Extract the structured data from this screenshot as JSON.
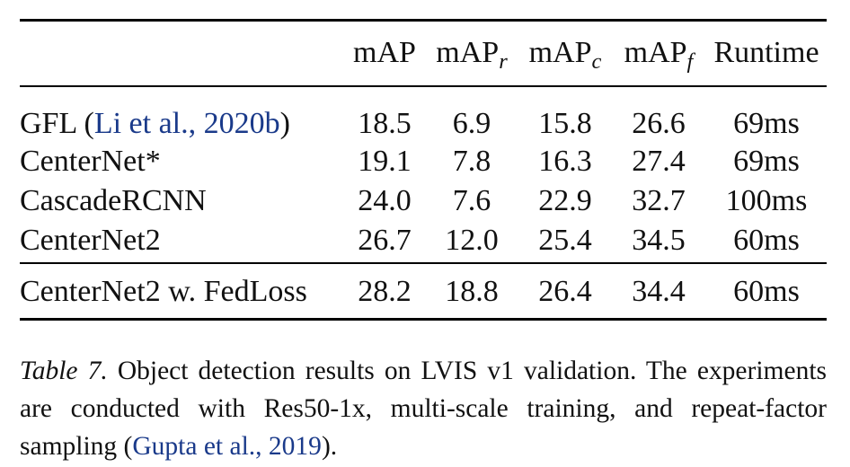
{
  "table": {
    "columns": [
      {
        "name": "",
        "sub": ""
      },
      {
        "name": "mAP",
        "sub": ""
      },
      {
        "name": "mAP",
        "sub": "r"
      },
      {
        "name": "mAP",
        "sub": "c"
      },
      {
        "name": "mAP",
        "sub": "f"
      },
      {
        "name": "Runtime",
        "sub": ""
      }
    ],
    "rows": [
      {
        "method": "GFL",
        "citation": "Li et al., 2020b",
        "values": [
          "18.5",
          "6.9",
          "15.8",
          "26.6",
          "69ms"
        ],
        "bold": [
          false,
          false,
          false,
          false,
          false
        ]
      },
      {
        "method": "CenterNet*",
        "values": [
          "19.1",
          "7.8",
          "16.3",
          "27.4",
          "69ms"
        ],
        "bold": [
          false,
          false,
          false,
          false,
          false
        ]
      },
      {
        "method": "CascadeRCNN",
        "values": [
          "24.0",
          "7.6",
          "22.9",
          "32.7",
          "100ms"
        ],
        "bold": [
          false,
          false,
          false,
          false,
          false
        ]
      },
      {
        "method": "CenterNet2",
        "values": [
          "26.7",
          "12.0",
          "25.4",
          "34.5",
          "60ms"
        ],
        "bold": [
          true,
          true,
          true,
          true,
          true
        ]
      },
      {
        "method": "CenterNet2 w. FedLoss",
        "values": [
          "28.2",
          "18.8",
          "26.4",
          "34.4",
          "60ms"
        ],
        "bold": [
          true,
          true,
          true,
          false,
          true
        ]
      }
    ]
  },
  "caption": {
    "label": "Table 7.",
    "text": "Object detection results on LVIS v1 validation. The experiments are conducted with Res50-1x, multi-scale training, and repeat-factor sampling (",
    "citation": "Gupta et al., 2019",
    "end": ")."
  },
  "colors": {
    "citation": "#1a3a8a",
    "text": "#111111",
    "rules": "#000000"
  }
}
